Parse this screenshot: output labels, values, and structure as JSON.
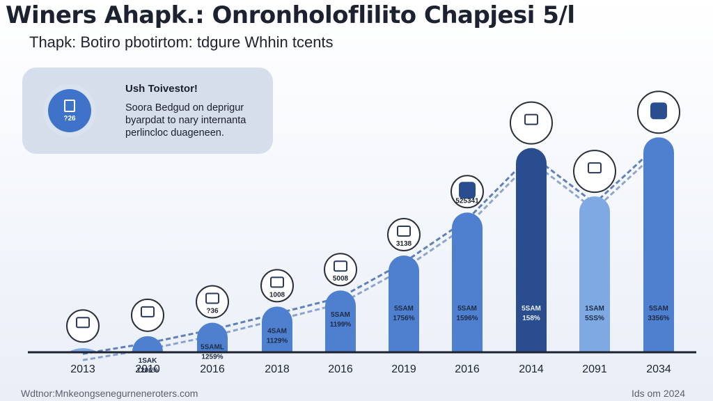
{
  "header": {
    "title": "Winers Ahapk.: Onronholoflilito Chapjesi 5/l",
    "subtitle": "Thapk: Botiro pbotirtom: tdgure Whhin tcents"
  },
  "callout": {
    "heading": "Ush Toivestor!",
    "icon_label": "?26",
    "lines": [
      "Soora Bedgud on deprigur",
      "byarpdat to nary internanta",
      "perlincloc duageneen."
    ]
  },
  "footer": {
    "source": "Wdtnor:Mnkeongsenegurneneroters.com",
    "note": "Ids om 2024"
  },
  "colors": {
    "bar_light": "#7fa9e3",
    "bar_mid": "#4f80cf",
    "bar_dark": "#2a4d8f",
    "baseline": "#1d2230",
    "trend": "#3b63a8"
  },
  "chart_data": {
    "type": "bar",
    "title": "",
    "xlabel": "",
    "ylabel": "",
    "categories": [
      "2013",
      "2010",
      "2016",
      "2018",
      "2016",
      "2019",
      "2016",
      "2014",
      "2091",
      "2034"
    ],
    "values": [
      2,
      6,
      11,
      17,
      23,
      36,
      52,
      76,
      58,
      80
    ],
    "ylim": [
      0,
      100
    ],
    "bar_labels": [
      [],
      [
        "1SAK",
        "1206%"
      ],
      [
        "5SAML",
        "1259%"
      ],
      [
        "4SAM",
        "1129%"
      ],
      [
        "5SAM",
        "1199%"
      ],
      [
        "5SAM",
        "1756%"
      ],
      [
        "5SAM",
        "1596%"
      ],
      [
        "5SAM",
        "158%"
      ],
      [
        "1SAM",
        "5SS%"
      ],
      [
        "5SAM",
        "3356%"
      ]
    ],
    "marker_labels": [
      "",
      "",
      "?36",
      "1008",
      "5008",
      "3138",
      "525341",
      "",
      "",
      ""
    ],
    "marker_icons": [
      "gear-icon",
      "hands-icon",
      "tablet-icon",
      "document-icon",
      "coin-icon",
      "building-icon",
      "shield-icon",
      "bank-icon",
      "office-icon",
      "shield-icon"
    ],
    "grid": false,
    "legend": "none"
  }
}
